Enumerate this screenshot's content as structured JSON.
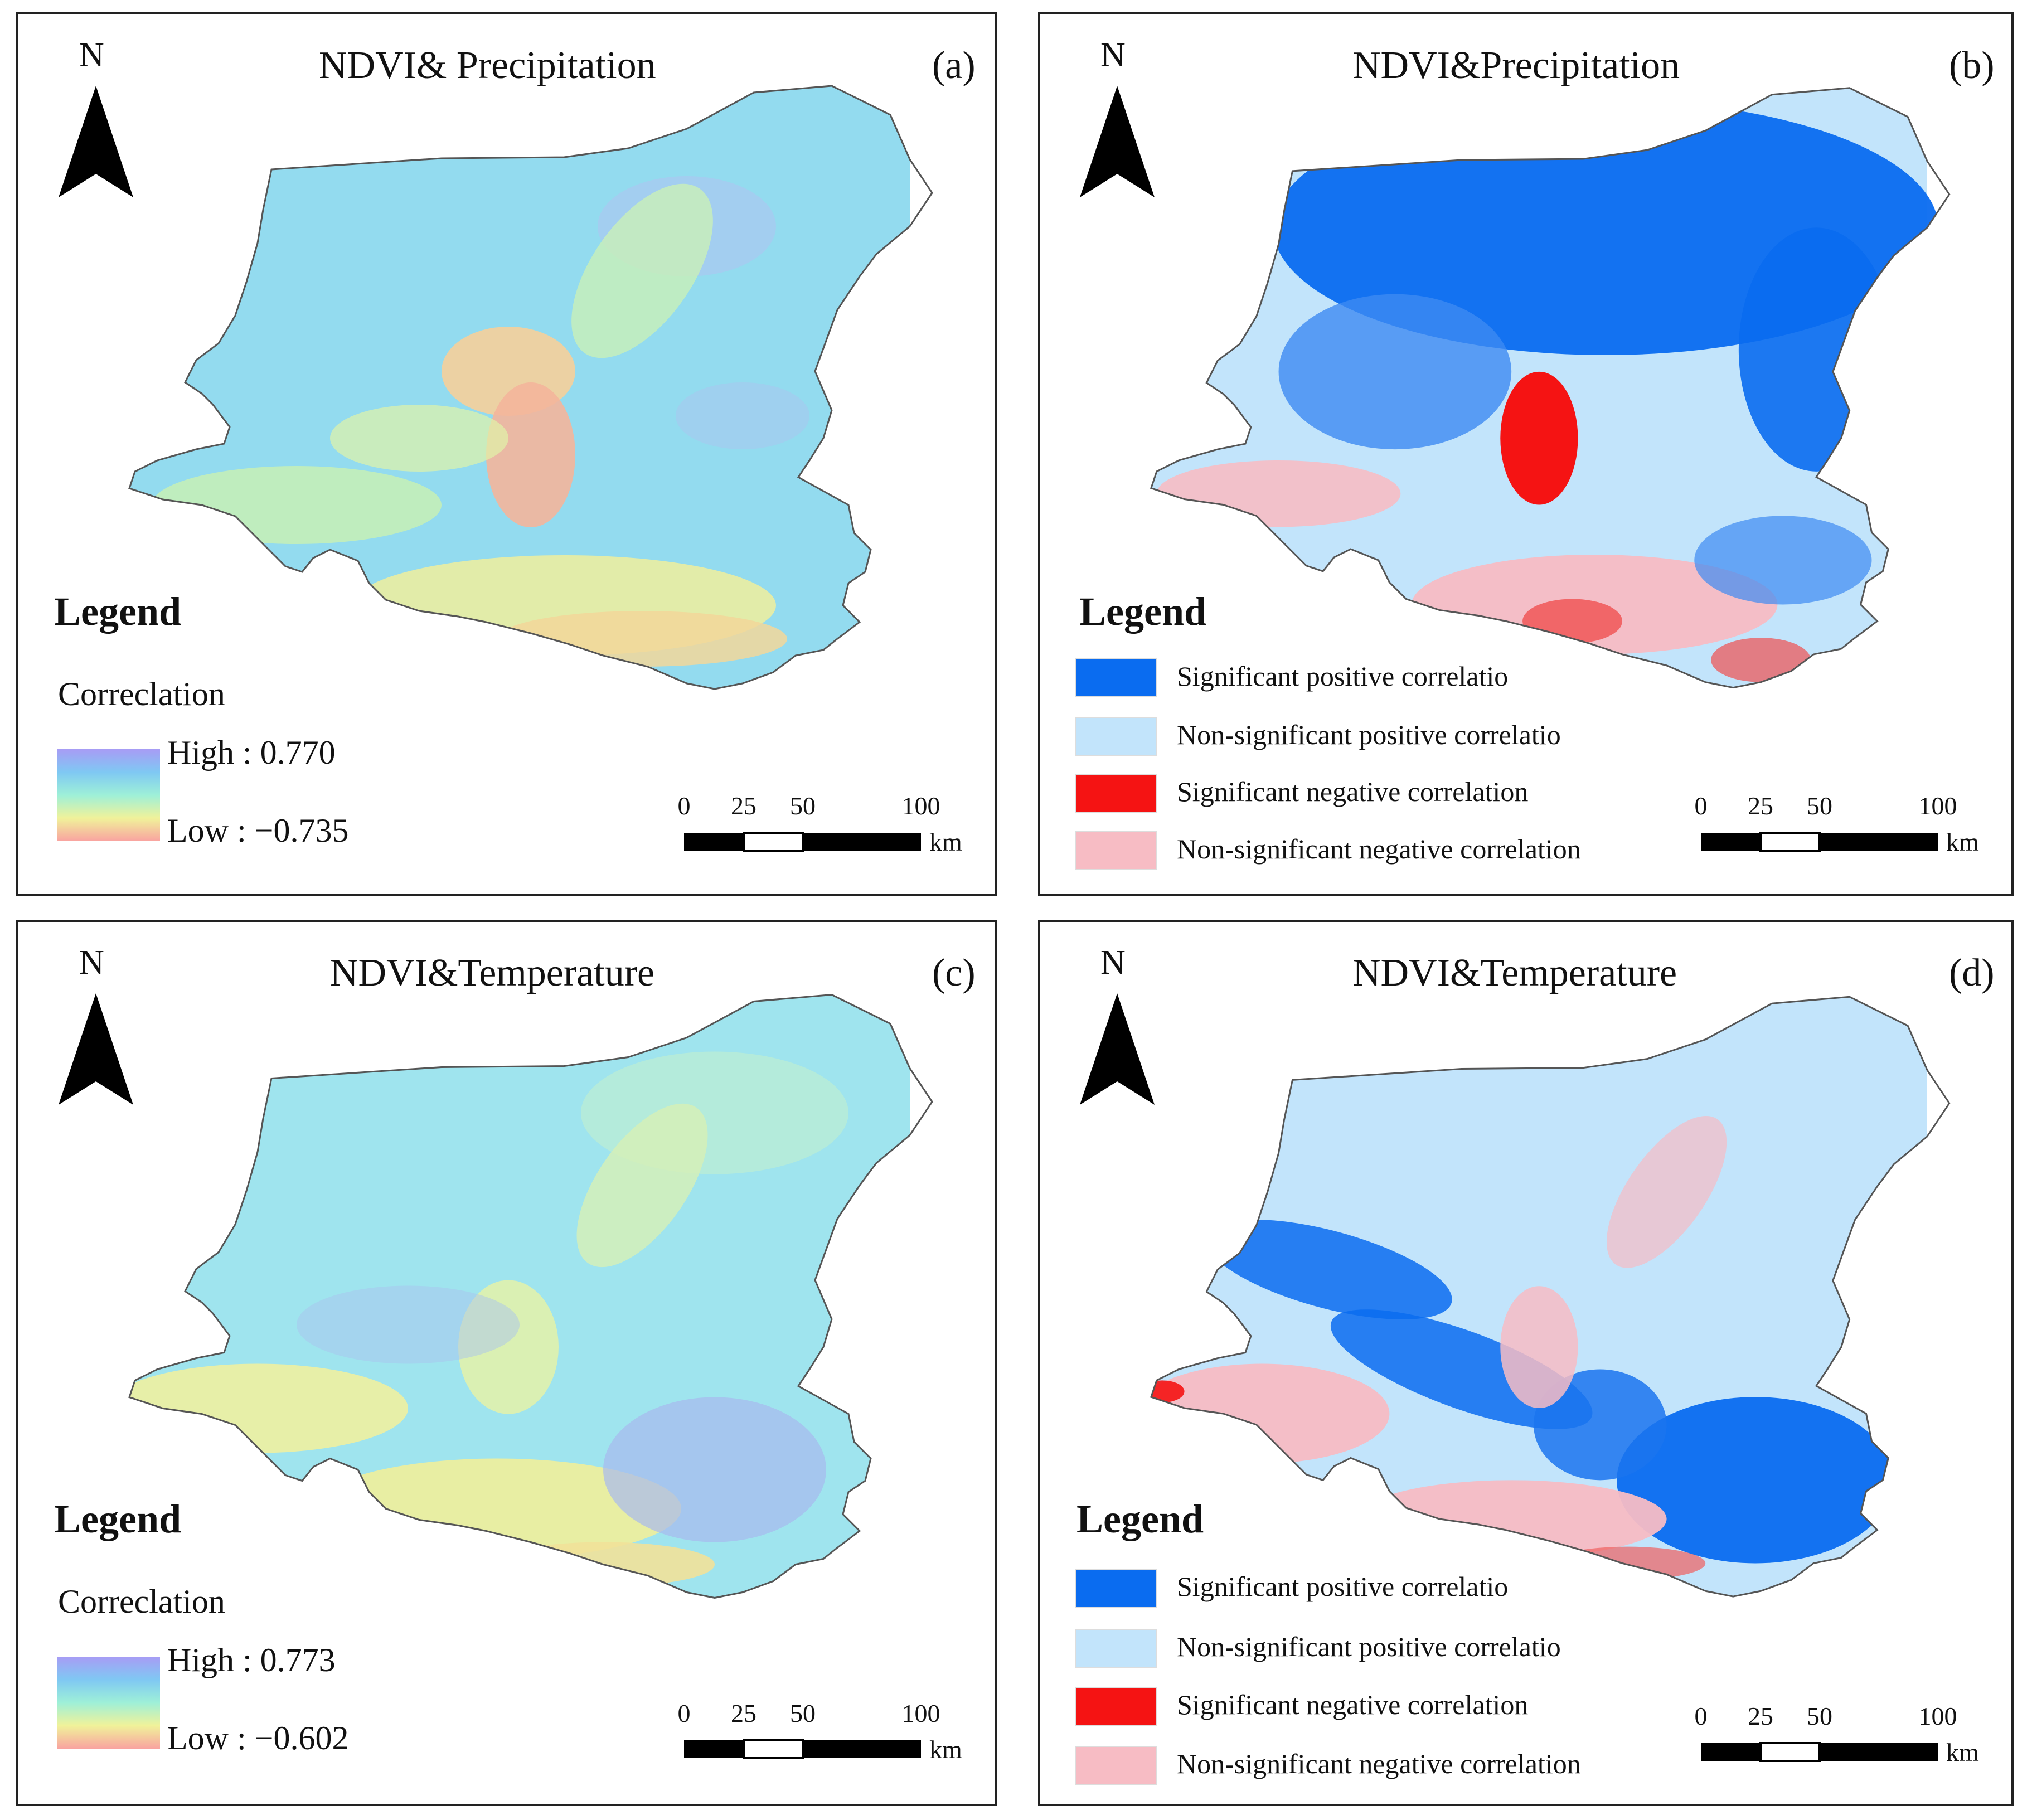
{
  "panels": [
    {
      "id": "a",
      "label": "(a)",
      "title": "NDVI& Precipitation",
      "north_label": "N",
      "legend_title": "Legend",
      "legend_type": "ramp",
      "ramp_label": "Correclation",
      "high_label": "High : 0.770",
      "low_label": "Low : −0.735",
      "ramp_colors": [
        "#a89cf5",
        "#7fc8f3",
        "#9ef0d8",
        "#f0f29a",
        "#f9a3a0"
      ],
      "scale_ticks": [
        "0",
        "25",
        "50",
        "100"
      ],
      "scale_unit": "km"
    },
    {
      "id": "b",
      "label": "(b)",
      "title": "NDVI&Precipitation",
      "north_label": "N",
      "legend_title": "Legend",
      "legend_type": "classes",
      "classes": [
        {
          "label": "Significant positive correlatio",
          "color": "#0a6cf0"
        },
        {
          "label": "Non-significant positive correlatio",
          "color": "#c2e4fb"
        },
        {
          "label": "Significant negative correlation",
          "color": "#f51313"
        },
        {
          "label": "Non-significant negative correlation",
          "color": "#f7bcc4"
        }
      ],
      "scale_ticks": [
        "0",
        "25",
        "50",
        "100"
      ],
      "scale_unit": "km"
    },
    {
      "id": "c",
      "label": "(c)",
      "title": "NDVI&Temperature",
      "north_label": "N",
      "legend_title": "Legend",
      "legend_type": "ramp",
      "ramp_label": "Correclation",
      "high_label": "High : 0.773",
      "low_label": "Low : −0.602",
      "ramp_colors": [
        "#a89cf5",
        "#7fc8f3",
        "#9ef0d8",
        "#f0f29a",
        "#f9a3a0"
      ],
      "scale_ticks": [
        "0",
        "25",
        "50",
        "100"
      ],
      "scale_unit": "km"
    },
    {
      "id": "d",
      "label": "(d)",
      "title": "NDVI&Temperature",
      "north_label": "N",
      "legend_title": "Legend",
      "legend_type": "classes",
      "classes": [
        {
          "label": "Significant positive correlatio",
          "color": "#0a6cf0"
        },
        {
          "label": "Non-significant positive correlatio",
          "color": "#c2e4fb"
        },
        {
          "label": "Significant negative correlation",
          "color": "#f51313"
        },
        {
          "label": "Non-significant negative correlation",
          "color": "#f7bcc4"
        }
      ],
      "scale_ticks": [
        "0",
        "25",
        "50",
        "100"
      ],
      "scale_unit": "km"
    }
  ]
}
